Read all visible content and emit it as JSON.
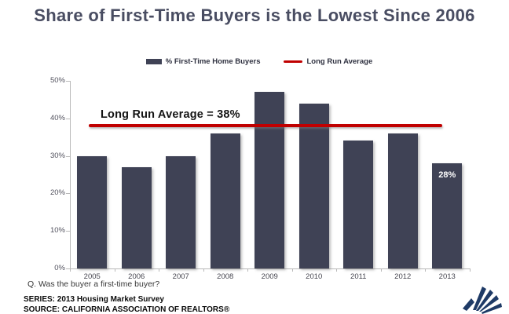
{
  "title": "Share of First-Time Buyers is the Lowest Since 2006",
  "legend": {
    "bars": "% First-Time Home Buyers",
    "line": "Long Run Average"
  },
  "chart_data": {
    "type": "bar",
    "title": "Share of First-Time Buyers is the Lowest Since 2006",
    "categories": [
      "2005",
      "2006",
      "2007",
      "2008",
      "2009",
      "2010",
      "2011",
      "2012",
      "2013"
    ],
    "series": [
      {
        "name": "% First-Time Home Buyers",
        "values": [
          30,
          27,
          30,
          36,
          47,
          44,
          34,
          36,
          28
        ]
      }
    ],
    "point_label": {
      "category": "2013",
      "text": "28%"
    },
    "reference_line": {
      "name": "Long Run Average",
      "value": 38,
      "label": "Long Run Average = 38%",
      "color": "#c00000"
    },
    "xlabel": "",
    "ylabel": "",
    "ylim": [
      0,
      50
    ],
    "yticks": [
      "0%",
      "10%",
      "20%",
      "30%",
      "40%",
      "50%"
    ],
    "grid": false,
    "legend_position": "top",
    "colors": {
      "bar": "#3f4255",
      "reference_line": "#c00000",
      "title": "#494d62"
    }
  },
  "footer": {
    "question": "Q. Was the buyer a first-time buyer?",
    "series_line": "SERIES: 2013 Housing Market Survey",
    "source_line": "SOURCE: CALIFORNIA ASSOCIATION OF REALTORS®"
  },
  "logo": "car-logo"
}
